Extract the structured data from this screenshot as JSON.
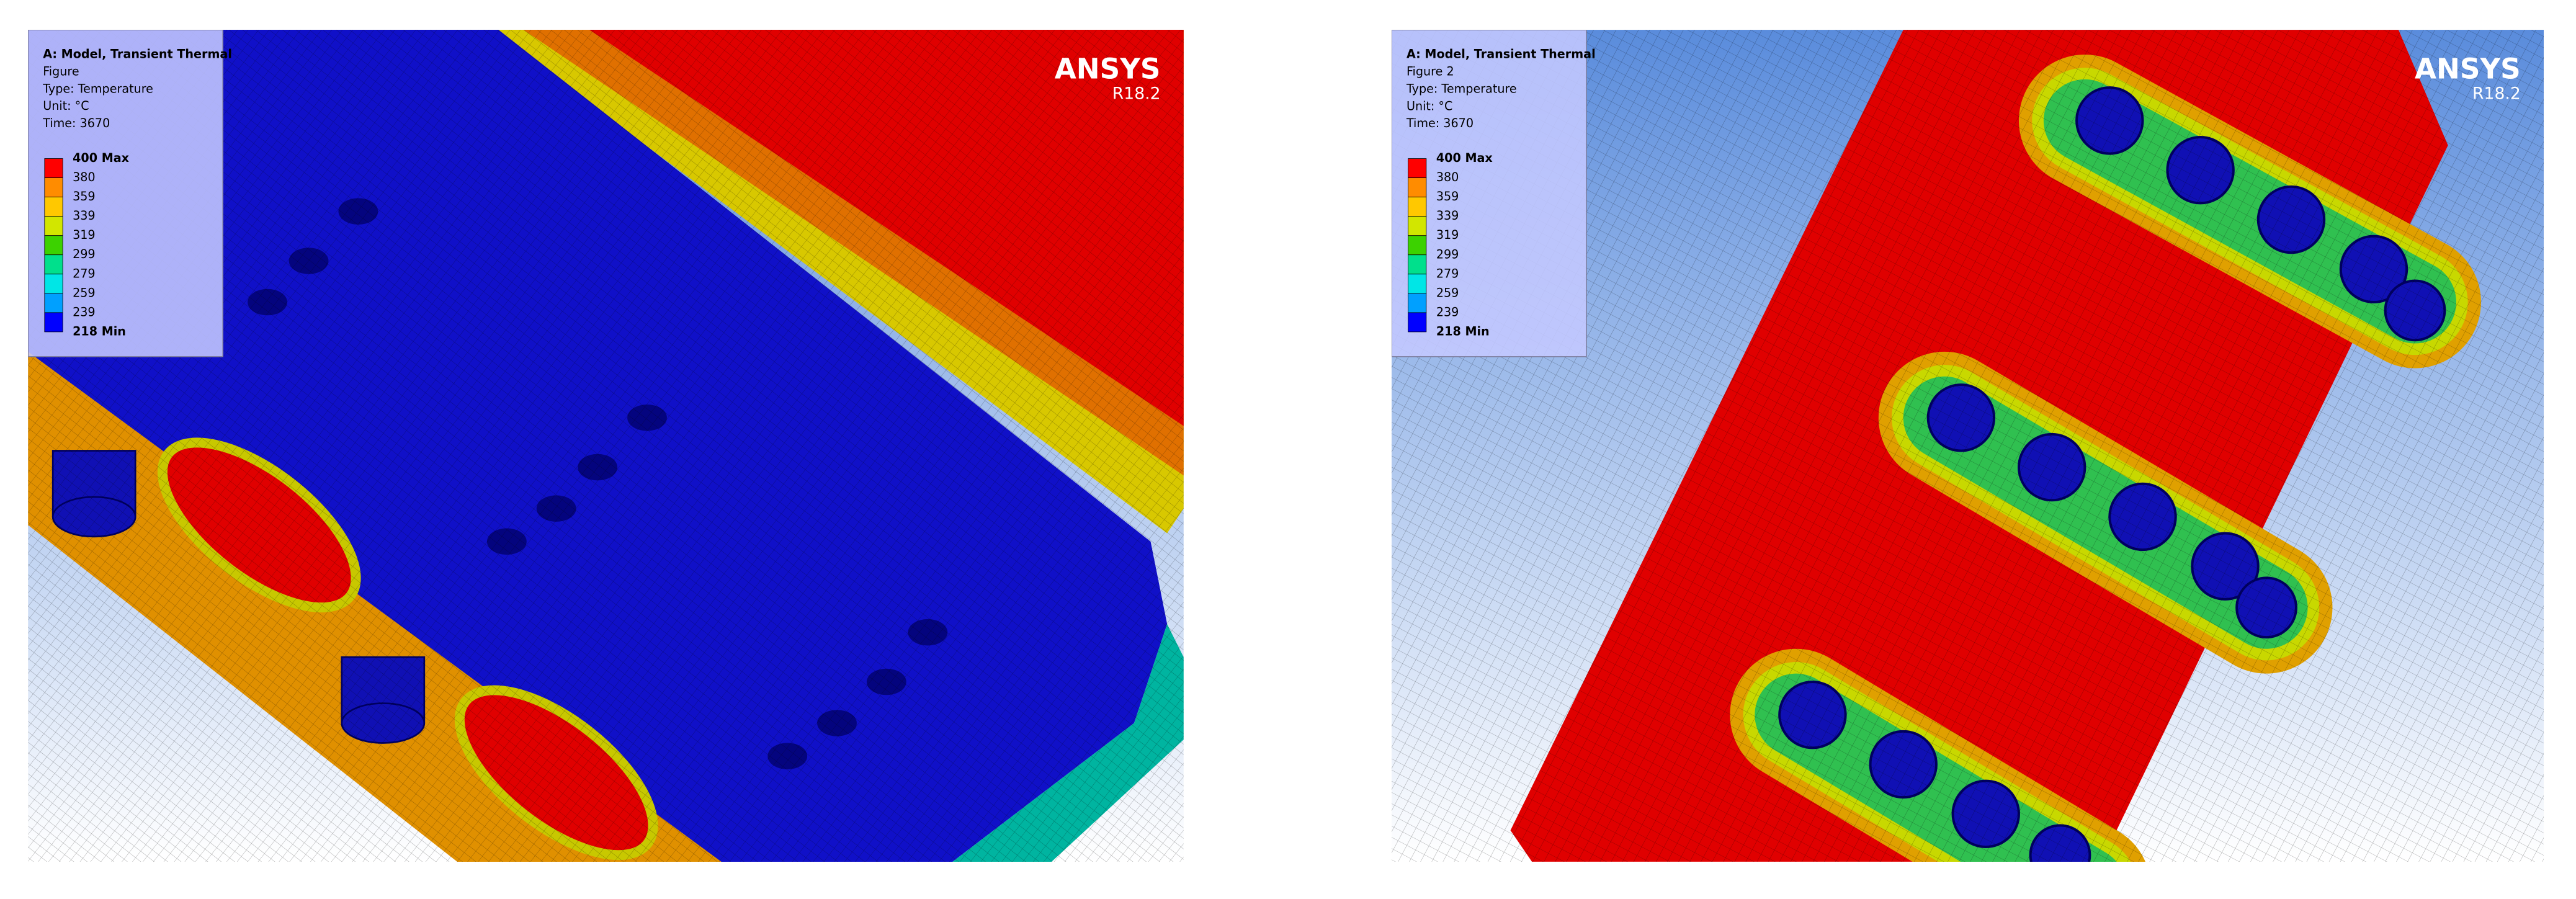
{
  "panels": [
    {
      "title": "A: Model, Transient Thermal",
      "figure": "Figure",
      "type": "Type: Temperature",
      "unit": "Unit: °C",
      "time": "Time: 3670",
      "legend": [
        "400 Max",
        "380",
        "359",
        "339",
        "319",
        "299",
        "279",
        "259",
        "239",
        "218 Min"
      ],
      "scale_colors": [
        "#ff0000",
        "#ff8c00",
        "#ffc800",
        "#d2e600",
        "#3cd200",
        "#00e08c",
        "#00e6e6",
        "#00a0ff",
        "#0000ff"
      ],
      "logo": "ANSYS",
      "version": "R18.2"
    },
    {
      "title": "A: Model, Transient Thermal",
      "figure": "Figure 2",
      "type": "Type: Temperature",
      "unit": "Unit: °C",
      "time": "Time: 3670",
      "legend": [
        "400 Max",
        "380",
        "359",
        "339",
        "319",
        "299",
        "279",
        "259",
        "239",
        "218 Min"
      ],
      "scale_colors": [
        "#ff0000",
        "#ff8c00",
        "#ffc800",
        "#d2e600",
        "#3cd200",
        "#00e08c",
        "#00e6e6",
        "#00a0ff",
        "#0000ff"
      ],
      "logo": "ANSYS",
      "version": "R18.2"
    }
  ]
}
